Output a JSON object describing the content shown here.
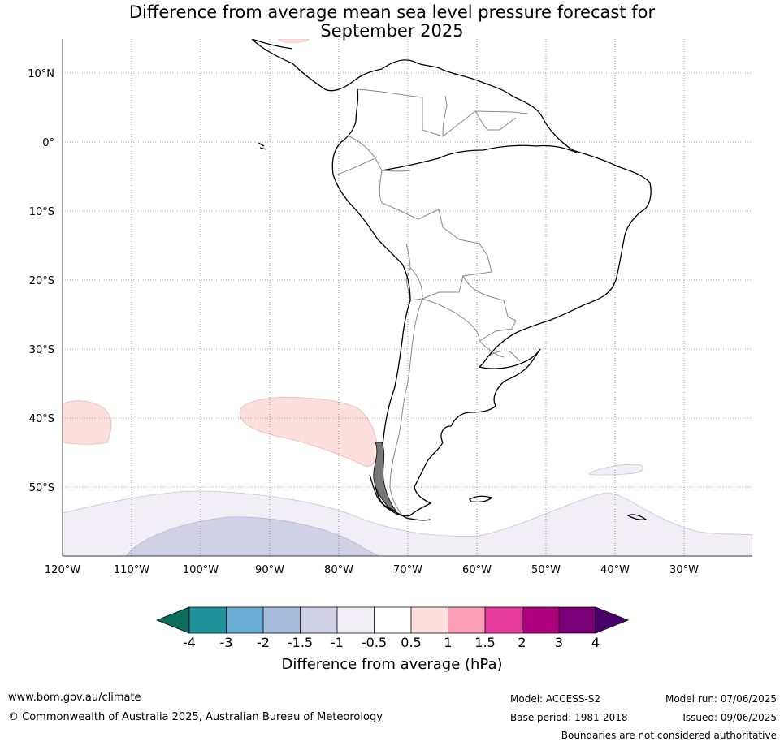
{
  "title_line1": "Difference from average mean sea level pressure forecast for",
  "title_line2": "September 2025",
  "lat_labels": [
    "10°N",
    "0°",
    "10°S",
    "20°S",
    "30°S",
    "40°S",
    "50°S"
  ],
  "lon_labels": [
    "120°W",
    "110°W",
    "100°W",
    "90°W",
    "80°W",
    "70°W",
    "60°W",
    "50°W",
    "40°W",
    "30°W"
  ],
  "colorbar": {
    "title": "Difference from average (hPa)",
    "tick_labels": [
      "-4",
      "-3",
      "-2",
      "-1.5",
      "-1",
      "-0.5",
      "0.5",
      "1",
      "1.5",
      "2",
      "3",
      "4"
    ],
    "colors": [
      "#0e6e5c",
      "#1f9299",
      "#6aaed6",
      "#a6bddb",
      "#d0d1e6",
      "#f1eef5",
      "#ffffff",
      "#fde0dd",
      "#fa9fb5",
      "#e33a9b",
      "#ae017e",
      "#7a0177",
      "#49006a"
    ]
  },
  "anomaly_regions": [
    {
      "name": "positive-anomaly-pacific-east",
      "range": "0.5 to 1"
    },
    {
      "name": "positive-anomaly-pacific-west",
      "range": "0.5 to 1"
    },
    {
      "name": "negative-anomaly-southern-ocean",
      "range": "-1 to -0.5"
    },
    {
      "name": "negative-anomaly-southern-ocean-core",
      "range": "-1.5 to -1"
    }
  ],
  "footer": {
    "url": "www.bom.gov.au/climate",
    "copyright": "© Commonwealth of Australia 2025, Australian Bureau of Meteorology",
    "model": "Model: ACCESS-S2",
    "base_period": "Base period: 1981-2018",
    "model_run": "Model run: 07/06/2025",
    "issued": "Issued: 09/06/2025",
    "disclaimer": "Boundaries are not considered authoritative"
  }
}
